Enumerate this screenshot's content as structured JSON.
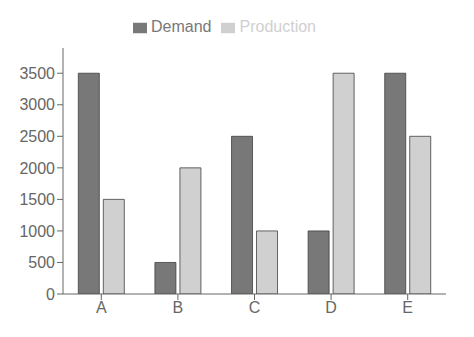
{
  "chart_data": {
    "type": "bar",
    "categories": [
      "A",
      "B",
      "C",
      "D",
      "E"
    ],
    "series": [
      {
        "name": "Demand",
        "color": "#787878",
        "values": [
          3500,
          500,
          2500,
          1000,
          3500
        ]
      },
      {
        "name": "Production",
        "color": "#d0d0d0",
        "values": [
          1500,
          2000,
          1000,
          3500,
          2500
        ]
      }
    ],
    "ylim": [
      0,
      3900
    ],
    "yticks": [
      0,
      500,
      1000,
      1500,
      2000,
      2500,
      3000,
      3500
    ],
    "legend": "top",
    "grid": false
  }
}
